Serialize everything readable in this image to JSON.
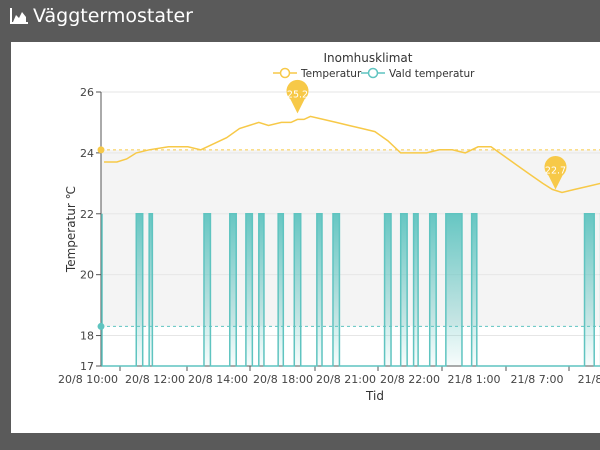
{
  "app": {
    "title": "Väggtermostater",
    "icon": "chart-area-icon"
  },
  "chart_data": {
    "type": "line",
    "title": "Inomhusklimat",
    "xlabel": "Tid",
    "ylabel": "Temperatur ℃",
    "ylim": [
      17,
      26
    ],
    "yticks": [
      17,
      18,
      20,
      22,
      24,
      26
    ],
    "categories": [
      "20/8 10:00",
      "20/8 12:00",
      "20/8 14:00",
      "20/8 18:00",
      "20/8 21:00",
      "20/8 22:00",
      "21/8 1:00",
      "21/8 7:00",
      "21/8"
    ],
    "legend": {
      "position": "top-center",
      "items": [
        "Temperatur",
        "Vald temperatur"
      ]
    },
    "colors": {
      "temperature": "#f7c948",
      "setpoint": "#5fc4c0",
      "grid": "#e6e6e6",
      "band": "#f4f4f4"
    },
    "series": [
      {
        "name": "Temperatur",
        "x": [
          0,
          0.2,
          0.35,
          0.5,
          0.7,
          1.0,
          1.3,
          1.5,
          1.7,
          1.9,
          2.1,
          2.25,
          2.4,
          2.55,
          2.75,
          2.9,
          3.0,
          3.1,
          3.2,
          3.4,
          3.6,
          3.8,
          4.0,
          4.2,
          4.4,
          4.6,
          4.8,
          5.0,
          5.2,
          5.4,
          5.6,
          5.8,
          6.0,
          6.2,
          6.4,
          6.6,
          6.8,
          6.95,
          7.1,
          7.3,
          7.5,
          7.7,
          7.9,
          8.1,
          8.3,
          8.5
        ],
        "values": [
          23.7,
          23.7,
          23.8,
          24.0,
          24.1,
          24.2,
          24.2,
          24.1,
          24.3,
          24.5,
          24.8,
          24.9,
          25.0,
          24.9,
          25.0,
          25.0,
          25.1,
          25.1,
          25.2,
          25.1,
          25.0,
          24.9,
          24.8,
          24.7,
          24.4,
          24.0,
          24.0,
          24.0,
          24.1,
          24.1,
          24.0,
          24.2,
          24.2,
          23.9,
          23.6,
          23.3,
          23.0,
          22.8,
          22.7,
          22.8,
          22.9,
          23.0,
          23.0,
          23.2,
          23.3,
          23.4
        ],
        "markers": [
          {
            "label": "25.2",
            "x": 3.0,
            "value": 25.2
          },
          {
            "label": "22.7",
            "x": 7.0,
            "value": 22.7
          }
        ],
        "average": 24.1
      },
      {
        "name": "Vald temperatur",
        "baseline": 17,
        "high": 22,
        "pulses": [
          [
            0.5,
            0.6
          ],
          [
            0.7,
            0.75
          ],
          [
            1.55,
            1.65
          ],
          [
            1.95,
            2.05
          ],
          [
            2.2,
            2.3
          ],
          [
            2.4,
            2.48
          ],
          [
            2.7,
            2.78
          ],
          [
            2.95,
            3.05
          ],
          [
            3.3,
            3.38
          ],
          [
            3.55,
            3.65
          ],
          [
            4.35,
            4.45
          ],
          [
            4.6,
            4.7
          ],
          [
            4.8,
            4.87
          ],
          [
            5.05,
            5.15
          ],
          [
            5.3,
            5.55
          ],
          [
            5.7,
            5.78
          ],
          [
            7.45,
            7.6
          ],
          [
            7.7,
            7.8
          ],
          [
            8.2,
            8.3
          ]
        ],
        "average": 18.3
      }
    ]
  }
}
